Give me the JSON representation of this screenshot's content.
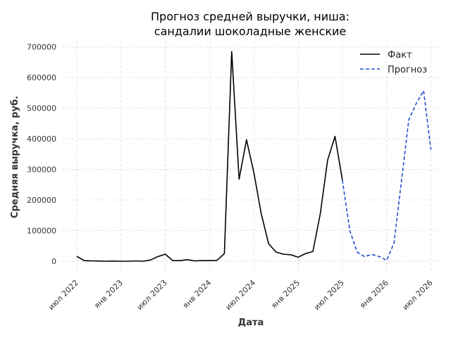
{
  "chart_data": {
    "type": "line",
    "title_line1": "Прогноз средней выручки, ниша:",
    "title_line2": "сандалии шоколадные женские",
    "xlabel": "Дата",
    "ylabel": "Средняя выручка, руб.",
    "ylim": [
      -30000,
      720000
    ],
    "xlim": [
      "2022-05-01",
      "2026-08-01"
    ],
    "grid": true,
    "legend_position": "top-right",
    "y_ticks": [
      0,
      100000,
      200000,
      300000,
      400000,
      500000,
      600000,
      700000
    ],
    "y_tick_labels": [
      "0",
      "100000",
      "200000",
      "300000",
      "400000",
      "500000",
      "600000",
      "700000"
    ],
    "x_ticks": [
      "2022-07-01",
      "2023-01-01",
      "2023-07-01",
      "2024-01-01",
      "2024-07-01",
      "2025-01-01",
      "2025-07-01",
      "2026-01-01",
      "2026-07-01"
    ],
    "x_tick_labels": [
      "июл 2022",
      "янв 2023",
      "июл 2023",
      "янв 2024",
      "июл 2024",
      "янв 2025",
      "июл 2025",
      "янв 2026",
      "июл 2026"
    ],
    "series": [
      {
        "name": "Факт",
        "color": "#000000",
        "style": "solid",
        "x": [
          "2022-07-01",
          "2022-08-01",
          "2022-09-01",
          "2022-10-01",
          "2022-11-01",
          "2022-12-01",
          "2023-01-01",
          "2023-02-01",
          "2023-03-01",
          "2023-04-01",
          "2023-05-01",
          "2023-06-01",
          "2023-07-01",
          "2023-08-01",
          "2023-09-01",
          "2023-10-01",
          "2023-11-01",
          "2023-12-01",
          "2024-01-01",
          "2024-02-01",
          "2024-03-01",
          "2024-04-01",
          "2024-05-01",
          "2024-06-01",
          "2024-07-01",
          "2024-08-01",
          "2024-09-01",
          "2024-10-01",
          "2024-11-01",
          "2024-12-01",
          "2025-01-01",
          "2025-02-01",
          "2025-03-01",
          "2025-04-01",
          "2025-05-01",
          "2025-06-01",
          "2025-07-01"
        ],
        "values": [
          16000,
          2000,
          1000,
          500,
          0,
          500,
          0,
          0,
          1000,
          0,
          4000,
          15000,
          23000,
          2000,
          2000,
          5000,
          1000,
          2000,
          2000,
          3000,
          25000,
          685000,
          268000,
          397000,
          290000,
          155000,
          57000,
          30000,
          23000,
          21000,
          13000,
          25000,
          32000,
          155000,
          330000,
          408000,
          265000
        ]
      },
      {
        "name": "Прогноз",
        "color": "#1f4fd1",
        "style": "dashed",
        "x": [
          "2025-07-01",
          "2025-08-01",
          "2025-09-01",
          "2025-10-01",
          "2025-11-01",
          "2025-12-01",
          "2026-01-01",
          "2026-02-01",
          "2026-03-01",
          "2026-04-01",
          "2026-05-01",
          "2026-06-01",
          "2026-07-01"
        ],
        "values": [
          265000,
          100000,
          30000,
          15000,
          22000,
          15000,
          3000,
          60000,
          260000,
          462000,
          515000,
          557000,
          365000
        ]
      }
    ]
  }
}
